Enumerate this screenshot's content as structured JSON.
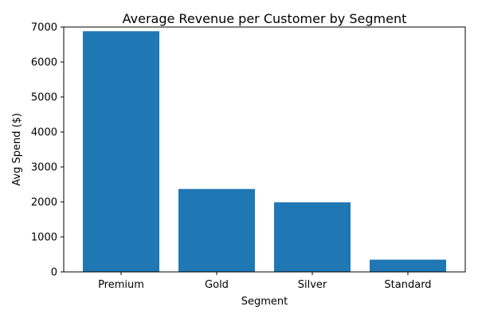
{
  "chart_data": {
    "type": "bar",
    "title": "Average Revenue per Customer by Segment",
    "xlabel": "Segment",
    "ylabel": "Avg Spend ($)",
    "categories": [
      "Premium",
      "Gold",
      "Silver",
      "Standard"
    ],
    "values": [
      6880,
      2370,
      1990,
      350
    ],
    "ylim": [
      0,
      7000
    ],
    "yticks": [
      0,
      1000,
      2000,
      3000,
      4000,
      5000,
      6000,
      7000
    ],
    "grid": false,
    "legend": "none",
    "bar_color": "#1f77b4"
  }
}
